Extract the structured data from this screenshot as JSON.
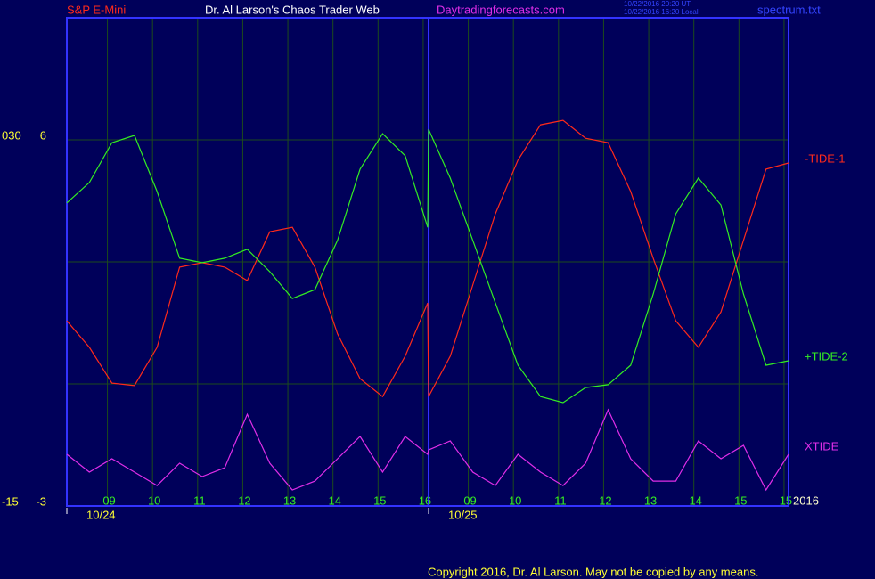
{
  "chart_data": {
    "type": "line",
    "header": {
      "symbol": "S&P E-Mini",
      "site_title": "Dr. Al Larson's Chaos Trader Web",
      "site_url": "Daytradingforecasts.com",
      "time_ut": "10/22/2016 20:20 UT",
      "time_local": "10/22/2016 16:20 Local",
      "file": "spectrum.txt"
    },
    "copyright": "Copyright 2016, Dr. Al Larson. May not be copied by any means.",
    "year_label": "2016",
    "date_labels": [
      {
        "value": 0,
        "label": "10/24"
      },
      {
        "value": 8.02,
        "label": "10/25"
      }
    ],
    "day_divider": 8.02,
    "xlim": [
      0,
      16
    ],
    "xticks": [
      {
        "value": 0.9,
        "label": "09"
      },
      {
        "value": 1.9,
        "label": "10"
      },
      {
        "value": 2.9,
        "label": "11"
      },
      {
        "value": 3.9,
        "label": "12"
      },
      {
        "value": 4.9,
        "label": "13"
      },
      {
        "value": 5.9,
        "label": "14"
      },
      {
        "value": 6.9,
        "label": "15"
      },
      {
        "value": 7.9,
        "label": "16"
      },
      {
        "value": 8.9,
        "label": "09"
      },
      {
        "value": 9.9,
        "label": "10"
      },
      {
        "value": 10.9,
        "label": "11"
      },
      {
        "value": 11.9,
        "label": "12"
      },
      {
        "value": 12.9,
        "label": "13"
      },
      {
        "value": 13.9,
        "label": "14"
      },
      {
        "value": 14.9,
        "label": "15"
      },
      {
        "value": 15.9,
        "label": "15"
      }
    ],
    "ylim": [
      -3,
      9
    ],
    "yticks": [
      -3,
      6
    ],
    "ygrid": [
      -3,
      0,
      3,
      6
    ],
    "y2lim": [
      -15,
      45
    ],
    "y2ticks": [
      -15,
      {
        "value": 30,
        "label": "030"
      }
    ],
    "grid": true,
    "x": [
      0,
      0.5,
      1,
      1.5,
      2,
      2.5,
      3,
      3.5,
      4,
      4.5,
      5,
      5.5,
      6,
      6.5,
      7,
      7.5,
      8,
      8.02,
      8.5,
      9,
      9.5,
      10,
      10.5,
      11,
      11.5,
      12,
      12.5,
      13,
      13.5,
      14,
      14.5,
      15,
      15.5,
      16
    ],
    "series": [
      {
        "name": "-TIDE-1",
        "color": "#ff2a1a",
        "values": [
          1.55,
          0.9,
          0.02,
          -0.04,
          0.9,
          2.87,
          2.98,
          2.87,
          2.54,
          3.74,
          3.85,
          2.87,
          1.23,
          0.13,
          -0.31,
          0.68,
          1.99,
          -0.31,
          0.68,
          2.43,
          4.18,
          5.5,
          6.37,
          6.48,
          6.04,
          5.93,
          4.73,
          3.09,
          1.55,
          0.9,
          1.77,
          3.53,
          5.28,
          5.43
        ]
      },
      {
        "name": "+TIDE-2",
        "color": "#33ee22",
        "values": [
          4.45,
          4.95,
          5.93,
          6.11,
          4.73,
          3.09,
          2.98,
          3.09,
          3.31,
          2.76,
          2.1,
          2.32,
          3.53,
          5.28,
          6.15,
          5.61,
          3.85,
          6.26,
          5.06,
          3.53,
          1.99,
          0.46,
          -0.31,
          -0.46,
          -0.09,
          -0.02,
          0.46,
          2.21,
          4.18,
          5.06,
          4.4,
          2.21,
          0.46,
          0.57
        ]
      },
      {
        "name": "XTIDE",
        "color": "#e02ee8",
        "axis": "y2",
        "values": [
          -8.65,
          -10.84,
          -9.2,
          -10.84,
          -12.49,
          -9.75,
          -11.39,
          -10.3,
          -3.73,
          -9.75,
          -13.03,
          -11.94,
          -9.2,
          -6.46,
          -10.84,
          -6.46,
          -8.65,
          -8.11,
          -7.01,
          -10.84,
          -12.49,
          -8.65,
          -10.84,
          -12.49,
          -9.75,
          -3.18,
          -9.2,
          -11.94,
          -11.94,
          -7.01,
          -9.2,
          -7.56,
          -13.03,
          -8.65
        ]
      }
    ]
  }
}
